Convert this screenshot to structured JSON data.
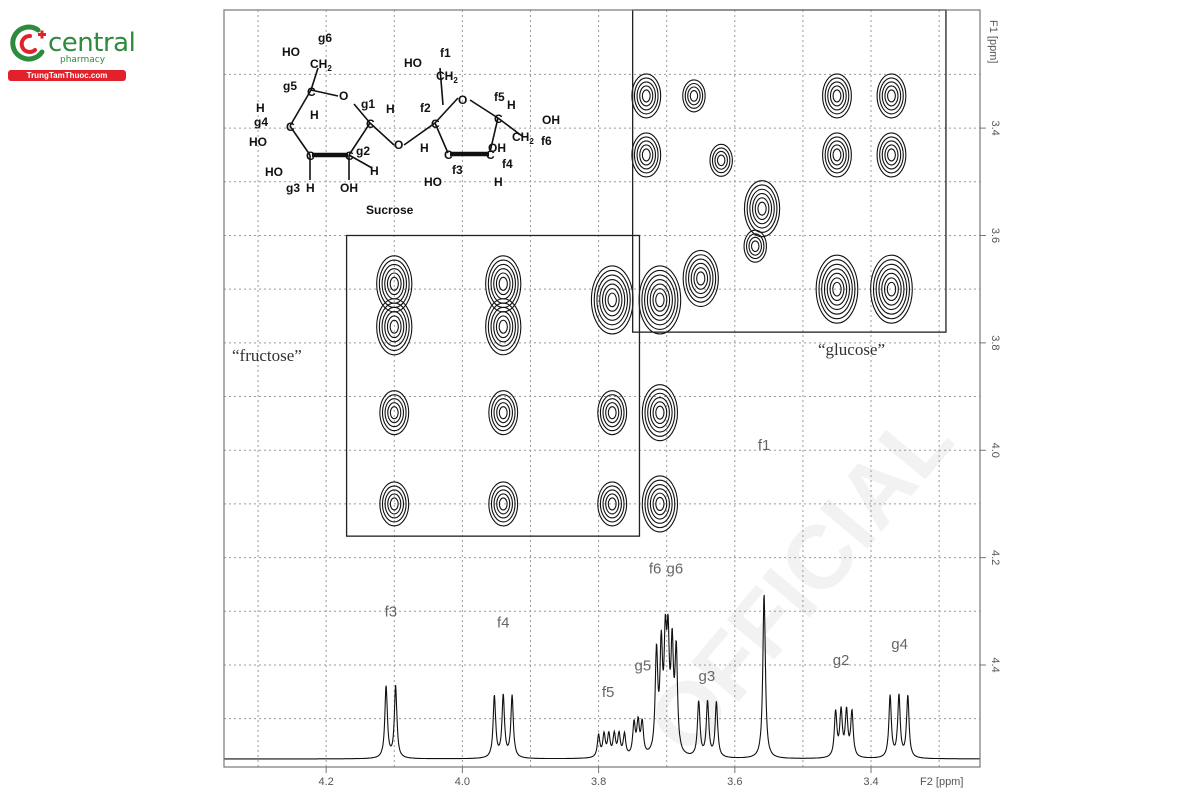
{
  "brand": {
    "name": "central",
    "sub": "pharmacy",
    "bar_text": "TrungTamThuoc.com",
    "colors": {
      "green": "#2e8b3d",
      "red": "#e2212b"
    },
    "icon": "central-pharmacy-logo"
  },
  "watermark_text": "OFFICIAL",
  "chart_data": {
    "type": "2D NMR (COSY) contour plot with 1D 1H spectrum",
    "title": "",
    "xlabel": "F2 [ppm]",
    "ylabel": "F1 [ppm]",
    "x_axis": {
      "range": [
        4.35,
        3.24
      ],
      "reversed": true,
      "ticks": [
        "4.2",
        "4.0",
        "3.8",
        "3.6",
        "3.4"
      ],
      "tick_values": [
        4.2,
        4.0,
        3.8,
        3.6,
        3.4
      ]
    },
    "y_axis": {
      "range": [
        3.18,
        4.59
      ],
      "reversed": true,
      "ticks": [
        "3.4",
        "3.6",
        "3.8",
        "4.0",
        "4.2",
        "4.4"
      ],
      "tick_values": [
        3.4,
        3.6,
        3.8,
        4.0,
        4.2,
        4.4
      ]
    },
    "grid": true,
    "region_labels": {
      "fructose": "“fructose”",
      "glucose": "“glucose”"
    },
    "regions": [
      {
        "name": "fructose",
        "f2": [
          4.17,
          3.74
        ],
        "f1": [
          3.6,
          4.16
        ]
      },
      {
        "name": "glucose",
        "f2": [
          3.75,
          3.29
        ],
        "f1": [
          3.18,
          3.78
        ]
      }
    ],
    "cross_peaks": [
      {
        "f2": 4.1,
        "f1": 3.69,
        "intensity": 3
      },
      {
        "f2": 4.1,
        "f1": 3.77,
        "intensity": 3
      },
      {
        "f2": 4.1,
        "f1": 3.93,
        "intensity": 2
      },
      {
        "f2": 4.1,
        "f1": 4.1,
        "intensity": 2
      },
      {
        "f2": 3.94,
        "f1": 3.69,
        "intensity": 3
      },
      {
        "f2": 3.94,
        "f1": 3.77,
        "intensity": 3
      },
      {
        "f2": 3.94,
        "f1": 3.93,
        "intensity": 2
      },
      {
        "f2": 3.94,
        "f1": 4.1,
        "intensity": 2
      },
      {
        "f2": 3.78,
        "f1": 3.72,
        "intensity": 4
      },
      {
        "f2": 3.78,
        "f1": 3.93,
        "intensity": 2
      },
      {
        "f2": 3.78,
        "f1": 4.1,
        "intensity": 2
      },
      {
        "f2": 3.71,
        "f1": 3.72,
        "intensity": 4
      },
      {
        "f2": 3.71,
        "f1": 3.93,
        "intensity": 3
      },
      {
        "f2": 3.71,
        "f1": 4.1,
        "intensity": 3
      },
      {
        "f2": 3.73,
        "f1": 3.34,
        "intensity": 2
      },
      {
        "f2": 3.73,
        "f1": 3.45,
        "intensity": 2
      },
      {
        "f2": 3.66,
        "f1": 3.34,
        "intensity": 1
      },
      {
        "f2": 3.62,
        "f1": 3.46,
        "intensity": 1
      },
      {
        "f2": 3.56,
        "f1": 3.55,
        "intensity": 3
      },
      {
        "f2": 3.65,
        "f1": 3.68,
        "intensity": 3
      },
      {
        "f2": 3.57,
        "f1": 3.62,
        "intensity": 1
      },
      {
        "f2": 3.45,
        "f1": 3.34,
        "intensity": 2
      },
      {
        "f2": 3.45,
        "f1": 3.45,
        "intensity": 2
      },
      {
        "f2": 3.45,
        "f1": 3.7,
        "intensity": 4
      },
      {
        "f2": 3.37,
        "f1": 3.34,
        "intensity": 2
      },
      {
        "f2": 3.37,
        "f1": 3.45,
        "intensity": 2
      },
      {
        "f2": 3.37,
        "f1": 3.7,
        "intensity": 4
      }
    ],
    "spectrum_1d": {
      "peaks": [
        {
          "label": "f3",
          "shift": 4.1,
          "lines": [
            4.112,
            4.098
          ],
          "height": 0.72
        },
        {
          "label": "f4",
          "shift": 3.94,
          "lines": [
            3.953,
            3.94,
            3.927
          ],
          "height": 0.62
        },
        {
          "label": "f5",
          "shift": 3.78,
          "lines": [
            3.8,
            3.792,
            3.785,
            3.777,
            3.77,
            3.762
          ],
          "height": 0.22
        },
        {
          "label": "g5",
          "shift": 3.74,
          "lines": [
            3.748,
            3.742,
            3.736
          ],
          "height": 0.32
        },
        {
          "label": "f6",
          "shift": 3.71,
          "lines": [
            3.715,
            3.708,
            3.702
          ],
          "height": 1.0
        },
        {
          "label": "g6",
          "shift": 3.7,
          "lines": [
            3.698,
            3.692,
            3.686
          ],
          "height": 1.0
        },
        {
          "label": "g3",
          "shift": 3.64,
          "lines": [
            3.653,
            3.64,
            3.627
          ],
          "height": 0.55
        },
        {
          "label": "f1",
          "shift": 3.56,
          "lines": [
            3.557
          ],
          "height": 1.65
        },
        {
          "label": "g2",
          "shift": 3.44,
          "lines": [
            3.452,
            3.444,
            3.436,
            3.428
          ],
          "height": 0.45
        },
        {
          "label": "g4",
          "shift": 3.36,
          "lines": [
            3.372,
            3.359,
            3.346
          ],
          "height": 0.62
        }
      ]
    },
    "peak_labels": [
      "f1",
      "f3",
      "f4",
      "f5",
      "f6",
      "g2",
      "g3",
      "g4",
      "g5",
      "g6"
    ],
    "structure": {
      "caption": "Sucrose",
      "atom_labels": [
        "g1",
        "g2",
        "g3",
        "g4",
        "g5",
        "g6",
        "f1",
        "f2",
        "f3",
        "f4",
        "f5",
        "f6"
      ]
    }
  }
}
